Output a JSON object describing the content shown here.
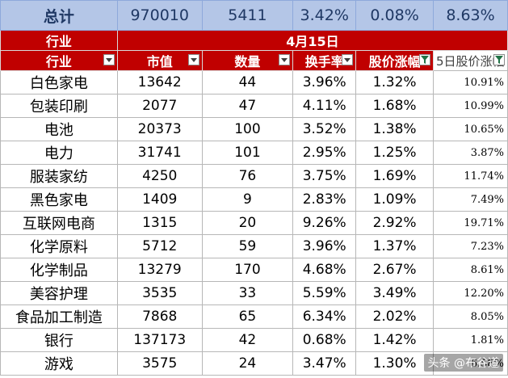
{
  "summary": {
    "label": "总计",
    "market_cap": "970010",
    "count": "5411",
    "turnover": "3.42%",
    "price_change": "0.08%",
    "five_day_change": "8.63%"
  },
  "date_band": {
    "row_label": "行业",
    "date": "4月15日"
  },
  "columns": [
    "行业",
    "市值",
    "数量",
    "换手率",
    "股价涨幅",
    "5日股价涨幅"
  ],
  "rows": [
    {
      "industry": "白色家电",
      "market_cap": "13642",
      "count": "44",
      "turnover": "3.96%",
      "price_change": "1.32%",
      "five_day": "10.91%"
    },
    {
      "industry": "包装印刷",
      "market_cap": "2077",
      "count": "47",
      "turnover": "4.11%",
      "price_change": "1.68%",
      "five_day": "10.99%"
    },
    {
      "industry": "电池",
      "market_cap": "20373",
      "count": "100",
      "turnover": "3.52%",
      "price_change": "1.38%",
      "five_day": "10.65%"
    },
    {
      "industry": "电力",
      "market_cap": "31741",
      "count": "101",
      "turnover": "2.95%",
      "price_change": "1.25%",
      "five_day": "3.87%"
    },
    {
      "industry": "服装家纺",
      "market_cap": "4250",
      "count": "76",
      "turnover": "3.75%",
      "price_change": "1.69%",
      "five_day": "11.74%"
    },
    {
      "industry": "黑色家电",
      "market_cap": "1409",
      "count": "9",
      "turnover": "2.83%",
      "price_change": "1.09%",
      "five_day": "7.49%"
    },
    {
      "industry": "互联网电商",
      "market_cap": "1315",
      "count": "20",
      "turnover": "9.26%",
      "price_change": "2.92%",
      "five_day": "19.71%"
    },
    {
      "industry": "化学原料",
      "market_cap": "5712",
      "count": "59",
      "turnover": "3.96%",
      "price_change": "1.37%",
      "five_day": "7.23%"
    },
    {
      "industry": "化学制品",
      "market_cap": "13279",
      "count": "170",
      "turnover": "4.68%",
      "price_change": "2.67%",
      "five_day": "8.61%"
    },
    {
      "industry": "美容护理",
      "market_cap": "3535",
      "count": "33",
      "turnover": "5.59%",
      "price_change": "3.49%",
      "five_day": "12.20%"
    },
    {
      "industry": "食品加工制造",
      "market_cap": "7868",
      "count": "65",
      "turnover": "6.34%",
      "price_change": "2.02%",
      "five_day": "8.05%"
    },
    {
      "industry": "银行",
      "market_cap": "137173",
      "count": "42",
      "turnover": "0.68%",
      "price_change": "1.42%",
      "five_day": "1.81%"
    },
    {
      "industry": "游戏",
      "market_cap": "3575",
      "count": "24",
      "turnover": "3.47%",
      "price_change": "1.30%",
      "five_day": "6.58%"
    }
  ],
  "watermark": "头条 @布谷道",
  "colors": {
    "header_red": "#c00000",
    "summary_blue": "#b4c6e7",
    "filter_active_green": "#217346"
  },
  "icons": {
    "filter": "dropdown-arrow-icon",
    "filter_active": "filter-funnel-icon"
  }
}
